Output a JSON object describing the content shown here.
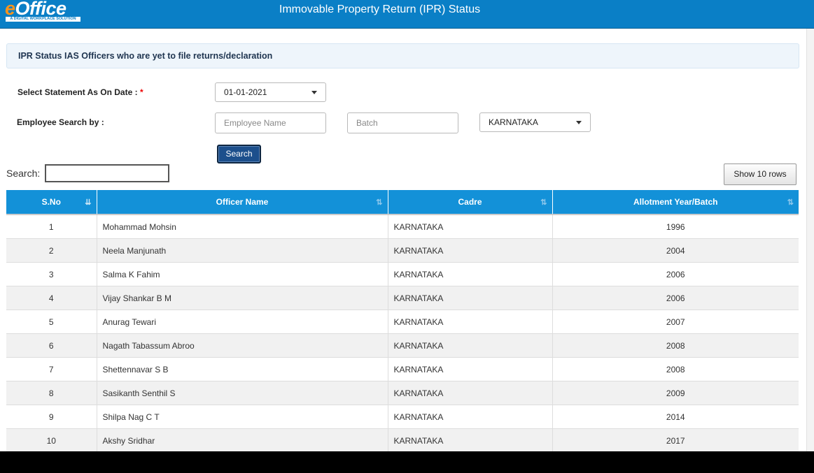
{
  "header": {
    "logo_text": "eOffice",
    "logo_tagline": "A DIGITAL WORKPLACE SOLUTION",
    "title": "Immovable Property Return (IPR) Status",
    "bg_color": "#0a7fc6"
  },
  "panel": {
    "heading": "IPR Status IAS Officers who are yet to file returns/declaration"
  },
  "form": {
    "statement_label": "Select Statement As On Date :",
    "required_mark": "*",
    "statement_date": "01-01-2021",
    "employee_search_label": "Employee Search by :",
    "employee_name_placeholder": "Employee Name",
    "batch_placeholder": "Batch",
    "cadre_selected": "KARNATAKA",
    "search_button": "Search"
  },
  "datatable": {
    "search_label": "Search:",
    "search_value": "",
    "show_rows_button": "Show 10 rows",
    "header_color": "#1391d8",
    "columns": [
      "S.No",
      "Officer Name",
      "Cadre",
      "Allotment Year/Batch"
    ],
    "rows": [
      [
        "1",
        "Mohammad Mohsin",
        "KARNATAKA",
        "1996"
      ],
      [
        "2",
        "Neela Manjunath",
        "KARNATAKA",
        "2004"
      ],
      [
        "3",
        "Salma K Fahim",
        "KARNATAKA",
        "2006"
      ],
      [
        "4",
        "Vijay Shankar B M",
        "KARNATAKA",
        "2006"
      ],
      [
        "5",
        "Anurag Tewari",
        "KARNATAKA",
        "2007"
      ],
      [
        "6",
        "Nagath Tabassum Abroo",
        "KARNATAKA",
        "2008"
      ],
      [
        "7",
        "Shettennavar S B",
        "KARNATAKA",
        "2008"
      ],
      [
        "8",
        "Sasikanth Senthil S",
        "KARNATAKA",
        "2009"
      ],
      [
        "9",
        "Shilpa Nag C T",
        "KARNATAKA",
        "2014"
      ],
      [
        "10",
        "Akshy Sridhar",
        "KARNATAKA",
        "2017"
      ]
    ]
  }
}
